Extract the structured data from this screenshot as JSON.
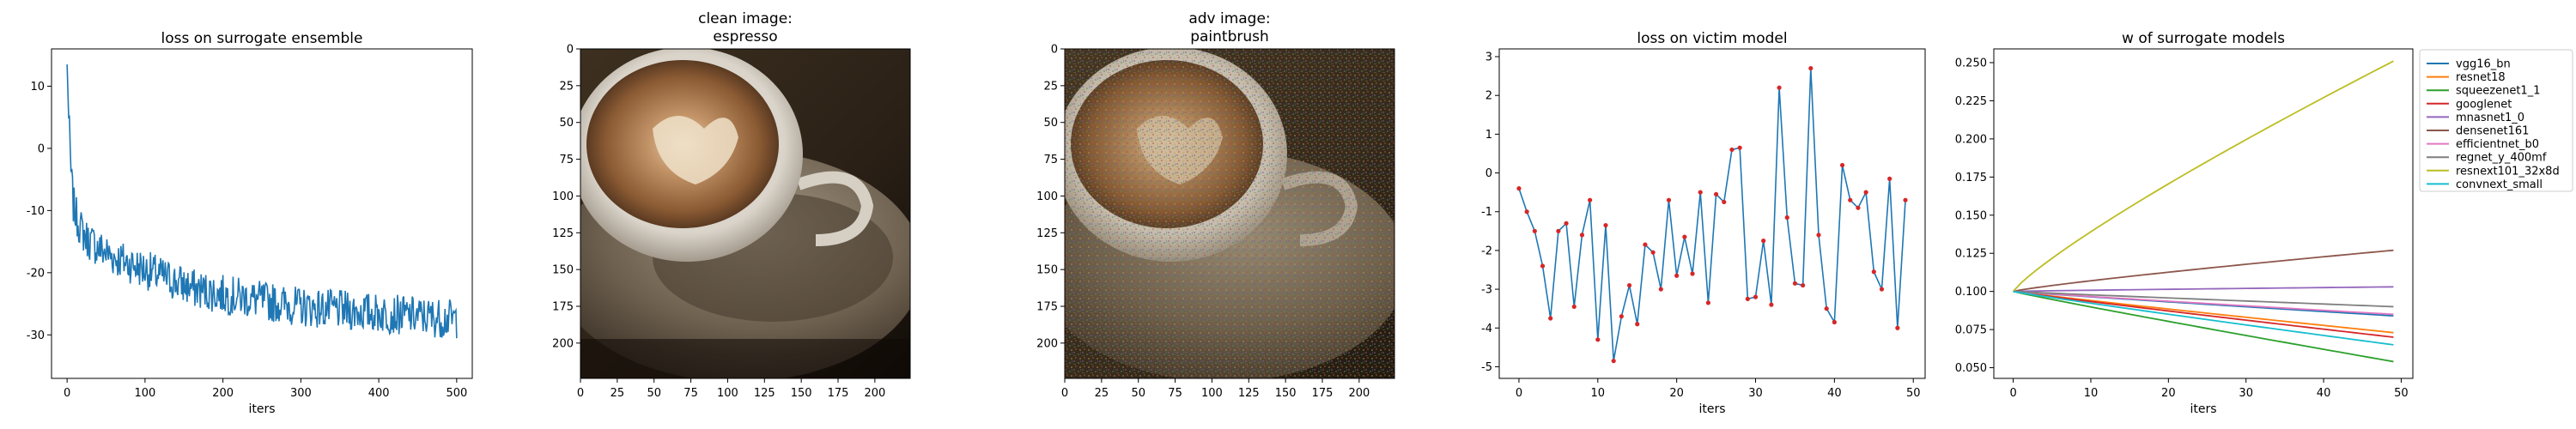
{
  "chart_data": [
    {
      "type": "line",
      "title": "loss on surrogate ensemble",
      "xlabel": "iters",
      "ylabel": "",
      "xlim": [
        -20,
        520
      ],
      "ylim": [
        -37,
        16
      ],
      "xticks": [
        0,
        100,
        200,
        300,
        400,
        500
      ],
      "yticks": [
        -30,
        -20,
        -10,
        0,
        10
      ],
      "color": "#1f77b4",
      "anchors": [
        [
          0,
          13.5
        ],
        [
          2,
          5
        ],
        [
          5,
          -4
        ],
        [
          8,
          -9
        ],
        [
          12,
          -11
        ],
        [
          18,
          -13
        ],
        [
          25,
          -14.5
        ],
        [
          40,
          -16
        ],
        [
          60,
          -17.5
        ],
        [
          80,
          -18.5
        ],
        [
          100,
          -19.5
        ],
        [
          130,
          -21
        ],
        [
          160,
          -22.5
        ],
        [
          200,
          -23.5
        ],
        [
          250,
          -24.5
        ],
        [
          300,
          -25.5
        ],
        [
          350,
          -26
        ],
        [
          400,
          -26.5
        ],
        [
          450,
          -27
        ],
        [
          500,
          -27.5
        ]
      ],
      "n_points": 501
    },
    {
      "type": "image",
      "title": "clean image:\nespresso",
      "title_lines": [
        "clean image:",
        "espresso"
      ],
      "xlim": [
        0,
        224
      ],
      "ylim": [
        224,
        0
      ],
      "xticks": [
        0,
        25,
        50,
        75,
        100,
        125,
        150,
        175,
        200
      ],
      "yticks": [
        0,
        25,
        50,
        75,
        100,
        125,
        150,
        175,
        200
      ]
    },
    {
      "type": "image",
      "title": "adv image:\npaintbrush",
      "title_lines": [
        "adv image:",
        "paintbrush"
      ],
      "xlim": [
        0,
        224
      ],
      "ylim": [
        224,
        0
      ],
      "xticks": [
        0,
        25,
        50,
        75,
        100,
        125,
        150,
        175,
        200
      ],
      "yticks": [
        0,
        25,
        50,
        75,
        100,
        125,
        150,
        175,
        200
      ]
    },
    {
      "type": "line",
      "title": "loss on victim model",
      "xlabel": "iters",
      "ylabel": "",
      "xlim": [
        -2.5,
        51.5
      ],
      "ylim": [
        -5.3,
        3.2
      ],
      "xticks": [
        0,
        10,
        20,
        30,
        40,
        50
      ],
      "yticks": [
        -5,
        -4,
        -3,
        -2,
        -1,
        0,
        1,
        2,
        3
      ],
      "color": "#1f77b4",
      "marker_color": "#d62728",
      "x": [
        0,
        1,
        2,
        3,
        4,
        5,
        6,
        7,
        8,
        9,
        10,
        11,
        12,
        13,
        14,
        15,
        16,
        17,
        18,
        19,
        20,
        21,
        22,
        23,
        24,
        25,
        26,
        27,
        28,
        29,
        30,
        31,
        32,
        33,
        34,
        35,
        36,
        37,
        38,
        39,
        40,
        41,
        42,
        43,
        44,
        45,
        46,
        47,
        48,
        49
      ],
      "y": [
        -0.4,
        -1.0,
        -1.5,
        -2.4,
        -3.75,
        -1.5,
        -1.3,
        -3.45,
        -1.6,
        -0.7,
        -4.3,
        -1.35,
        -4.85,
        -3.7,
        -2.9,
        -3.9,
        -1.85,
        -2.05,
        -3.0,
        -0.7,
        -2.65,
        -1.65,
        -2.6,
        -0.5,
        -3.35,
        -0.55,
        -0.75,
        0.6,
        0.65,
        -3.25,
        -3.2,
        -1.75,
        -3.4,
        2.2,
        -1.15,
        -2.85,
        -2.9,
        2.7,
        -1.6,
        -3.5,
        -3.85,
        0.2,
        -0.7,
        -0.9,
        -0.5,
        -2.55,
        -3.0,
        -0.15,
        -4.0,
        -0.7
      ]
    },
    {
      "type": "line",
      "title": "w of surrogate models",
      "xlabel": "iters",
      "ylabel": "",
      "xlim": [
        -2.5,
        51.5
      ],
      "ylim": [
        0.043,
        0.259
      ],
      "xticks": [
        0,
        10,
        20,
        30,
        40,
        50
      ],
      "yticks": [
        0.05,
        0.075,
        0.1,
        0.125,
        0.15,
        0.175,
        0.2,
        0.225,
        0.25
      ],
      "ytick_labels": [
        "0.050",
        "0.075",
        "0.100",
        "0.125",
        "0.150",
        "0.175",
        "0.200",
        "0.225",
        "0.250"
      ],
      "legend_position": "outside-right",
      "n_points": 50,
      "series": [
        {
          "name": "vgg16_bn",
          "color": "#1f77b4",
          "start": 0.1,
          "end": 0.084
        },
        {
          "name": "resnet18",
          "color": "#ff7f0e",
          "start": 0.1,
          "end": 0.073
        },
        {
          "name": "squeezenet1_1",
          "color": "#2ca02c",
          "start": 0.1,
          "end": 0.054
        },
        {
          "name": "googlenet",
          "color": "#d62728",
          "start": 0.1,
          "end": 0.07
        },
        {
          "name": "mnasnet1_0",
          "color": "#9467bd",
          "start": 0.1,
          "end": 0.103
        },
        {
          "name": "densenet161",
          "color": "#8c564b",
          "start": 0.1,
          "end": 0.127
        },
        {
          "name": "efficientnet_b0",
          "color": "#e377c2",
          "start": 0.1,
          "end": 0.085
        },
        {
          "name": "regnet_y_400mf",
          "color": "#7f7f7f",
          "start": 0.1,
          "end": 0.09
        },
        {
          "name": "resnext101_32x8d",
          "color": "#bcbd22",
          "start": 0.1,
          "end": 0.251
        },
        {
          "name": "convnext_small",
          "color": "#17becf",
          "start": 0.1,
          "end": 0.065
        }
      ]
    }
  ]
}
